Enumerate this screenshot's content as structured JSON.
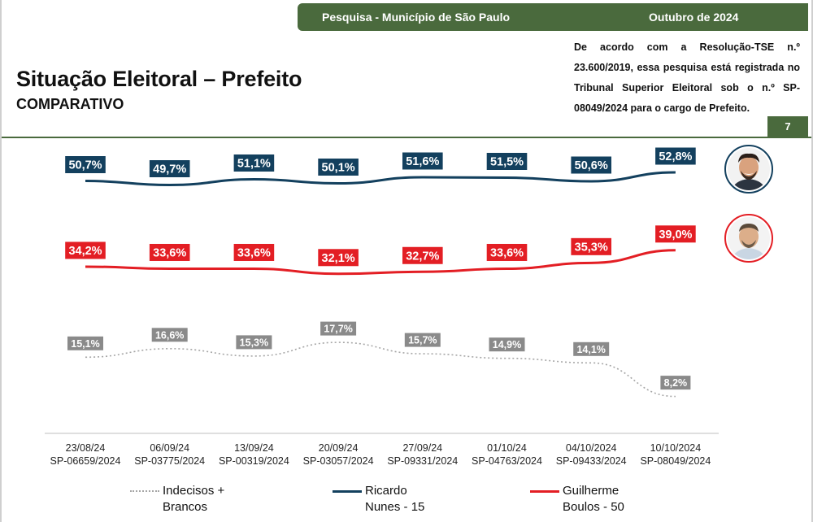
{
  "header": {
    "survey": "Pesquisa - Município de São Paulo",
    "month": "Outubro de 2024",
    "title": "Situação Eleitoral – Prefeito",
    "subtitle": "COMPARATIVO",
    "legal": "De acordo com a Resolução-TSE n.º 23.600/2019, essa pesquisa está registrada no Tribunal Superior Eleitoral sob o n.º SP-08049/2024 para o cargo de Prefeito.",
    "page_number": "7"
  },
  "colors": {
    "accent_green": "#4a6a3d",
    "nunes": "#13405e",
    "boulos": "#e31e24",
    "undecided_label": "#8a8a8a",
    "undecided_line": "#a6a6a6"
  },
  "chart_data": {
    "type": "line",
    "categories": [
      {
        "date": "23/08/24",
        "code": "SP-06659/2024"
      },
      {
        "date": "06/09/24",
        "code": "SP-03775/2024"
      },
      {
        "date": "13/09/24",
        "code": "SP-00319/2024"
      },
      {
        "date": "20/09/24",
        "code": "SP-03057/2024"
      },
      {
        "date": "27/09/24",
        "code": "SP-09331/2024"
      },
      {
        "date": "01/10/24",
        "code": "SP-04763/2024"
      },
      {
        "date": "04/10/2024",
        "code": "SP-09433/2024"
      },
      {
        "date": "10/10/2024",
        "code": "SP-08049/2024"
      }
    ],
    "series": [
      {
        "key": "nunes",
        "name": "Ricardo Nunes - 15",
        "legend_lines": [
          "Ricardo",
          "Nunes - 15"
        ],
        "values": [
          50.7,
          49.7,
          51.1,
          50.1,
          51.6,
          51.5,
          50.6,
          52.8
        ],
        "labels": [
          "50,7%",
          "49,7%",
          "51,1%",
          "50,1%",
          "51,6%",
          "51,5%",
          "50,6%",
          "52,8%"
        ],
        "color": "#13405e",
        "label_bg": "#13405e",
        "style": "solid"
      },
      {
        "key": "boulos",
        "name": "Guilherme Boulos - 50",
        "legend_lines": [
          "Guilherme",
          "Boulos - 50"
        ],
        "values": [
          34.2,
          33.6,
          33.6,
          32.1,
          32.7,
          33.6,
          35.3,
          39.0
        ],
        "labels": [
          "34,2%",
          "33,6%",
          "33,6%",
          "32,1%",
          "32,7%",
          "33,6%",
          "35,3%",
          "39,0%"
        ],
        "color": "#e31e24",
        "label_bg": "#e31e24",
        "style": "solid"
      },
      {
        "key": "undecided",
        "name": "Indecisos + Brancos",
        "legend_lines": [
          "Indecisos +",
          "Brancos"
        ],
        "values": [
          15.1,
          16.6,
          15.3,
          17.7,
          15.7,
          14.9,
          14.1,
          8.2
        ],
        "labels": [
          "15,1%",
          "16,6%",
          "15,3%",
          "17,7%",
          "15,7%",
          "14,9%",
          "14,1%",
          "8,2%"
        ],
        "color": "#a6a6a6",
        "label_bg": "#8a8a8a",
        "style": "dotted"
      }
    ],
    "legend_placement": "bottom",
    "grid": false
  }
}
